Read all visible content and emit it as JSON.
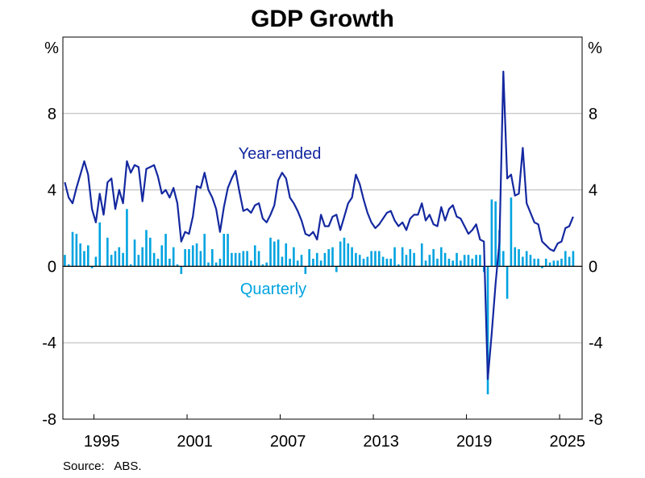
{
  "chart_data": {
    "type": "bar+line",
    "title": "GDP Growth",
    "ylabel_left": "%",
    "ylabel_right": "%",
    "ylim": [
      -8,
      12
    ],
    "yticks": [
      -8,
      -4,
      0,
      4,
      8
    ],
    "ytick_labels": [
      "-8",
      "-4",
      "0",
      "4",
      "8"
    ],
    "xticks": [
      "1995",
      "2001",
      "2007",
      "2013",
      "2019",
      "2025"
    ],
    "xlim": [
      1993.0,
      2026.45
    ],
    "start_quarter": "1993 Q1",
    "frequency": "quarterly",
    "grid": true,
    "series": [
      {
        "name": "Year-ended",
        "kind": "line",
        "color": "#1428a0",
        "values": [
          4.4,
          3.6,
          3.3,
          4.1,
          4.8,
          5.5,
          4.8,
          3.0,
          2.3,
          3.8,
          2.7,
          4.4,
          4.6,
          3.0,
          4.0,
          3.3,
          5.5,
          4.9,
          5.3,
          5.2,
          3.4,
          5.1,
          5.2,
          5.3,
          4.7,
          3.8,
          4.0,
          3.6,
          4.1,
          3.3,
          1.3,
          1.8,
          1.7,
          2.6,
          4.2,
          4.1,
          4.9,
          4.0,
          3.6,
          3.0,
          1.8,
          3.1,
          4.1,
          4.6,
          5.0,
          3.9,
          2.9,
          3.0,
          2.8,
          3.2,
          3.3,
          2.5,
          2.3,
          2.7,
          3.2,
          4.5,
          4.9,
          4.6,
          3.6,
          3.3,
          2.9,
          2.4,
          1.7,
          1.6,
          1.8,
          1.4,
          2.7,
          2.1,
          2.1,
          2.6,
          2.7,
          1.9,
          2.6,
          3.3,
          3.6,
          4.8,
          4.3,
          3.5,
          2.8,
          2.3,
          2.0,
          2.2,
          2.5,
          2.8,
          2.9,
          2.4,
          2.1,
          2.3,
          1.9,
          2.5,
          2.7,
          2.7,
          3.3,
          2.4,
          2.7,
          2.2,
          2.1,
          3.1,
          2.4,
          3.0,
          3.2,
          2.6,
          2.5,
          2.1,
          1.7,
          1.9,
          2.2,
          1.4,
          1.3,
          -5.9,
          -3.5,
          -0.9,
          1.3,
          10.2,
          4.6,
          4.8,
          3.7,
          3.8,
          6.2,
          3.3,
          2.8,
          2.3,
          2.2,
          1.3,
          1.1,
          0.9,
          0.8,
          1.2,
          1.3,
          2.0,
          2.1,
          2.6
        ]
      },
      {
        "name": "Quarterly",
        "kind": "bar",
        "color": "#00a3e0",
        "values": [
          0.6,
          0.1,
          1.8,
          1.7,
          1.2,
          0.8,
          1.1,
          -0.1,
          0.5,
          2.3,
          0.0,
          1.5,
          0.6,
          0.8,
          1.0,
          0.7,
          3.0,
          0.1,
          1.4,
          0.6,
          1.0,
          1.9,
          1.5,
          0.7,
          0.4,
          1.1,
          1.7,
          0.4,
          1.0,
          0.1,
          -0.4,
          0.9,
          0.9,
          1.1,
          1.2,
          0.8,
          1.7,
          0.2,
          0.9,
          0.2,
          0.4,
          1.7,
          1.7,
          0.7,
          0.7,
          0.7,
          0.8,
          0.8,
          0.3,
          1.1,
          0.8,
          0.1,
          0.2,
          1.5,
          1.3,
          1.4,
          0.5,
          1.2,
          0.4,
          1.0,
          0.3,
          0.6,
          -0.4,
          0.9,
          0.4,
          0.7,
          0.3,
          0.7,
          0.9,
          1.0,
          -0.3,
          1.3,
          1.5,
          1.2,
          1.0,
          0.7,
          0.6,
          0.4,
          0.5,
          0.8,
          0.8,
          0.8,
          0.5,
          0.4,
          0.4,
          1.0,
          0.1,
          1.0,
          0.6,
          0.9,
          0.7,
          0.0,
          1.2,
          0.3,
          0.6,
          0.9,
          0.4,
          1.0,
          0.7,
          0.4,
          0.3,
          0.7,
          0.3,
          0.6,
          0.6,
          0.4,
          0.6,
          0.6,
          -0.3,
          -6.7,
          3.5,
          3.4,
          1.9,
          0.8,
          -1.7,
          3.6,
          1.0,
          0.9,
          0.5,
          0.8,
          0.6,
          0.4,
          0.4,
          -0.1,
          0.4,
          0.2,
          0.3,
          0.3,
          0.4,
          0.8,
          0.5,
          0.8
        ]
      }
    ],
    "source": "Source:   ABS."
  }
}
